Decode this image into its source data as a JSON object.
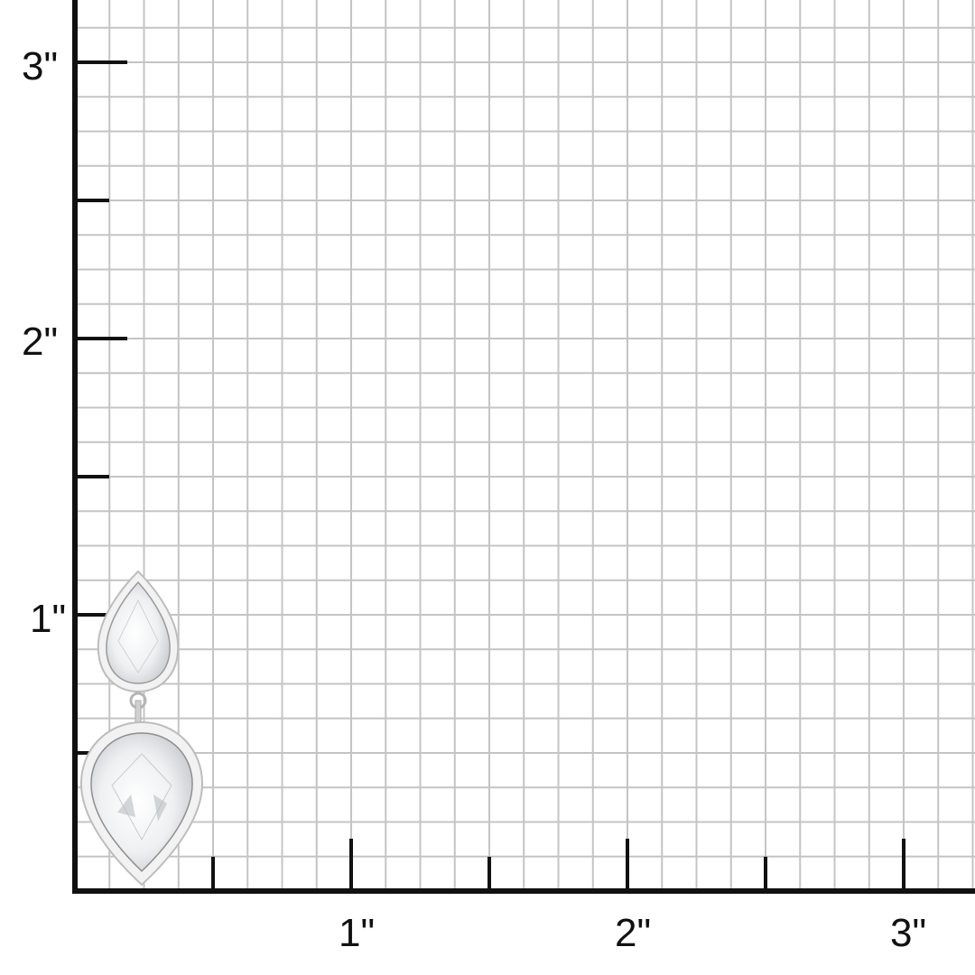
{
  "ruler": {
    "unit": "inch",
    "x_labels": [
      "1\"",
      "2\"",
      "3\""
    ],
    "y_labels": [
      "1\"",
      "2\"",
      "3\""
    ],
    "grid_divisions_per_inch": 8,
    "colors": {
      "axis": "#111111",
      "grid": "#c4c4c4",
      "metal": "#d9d9d9"
    }
  },
  "product": {
    "name": "earring",
    "icon": "pear-crystal-drop-earring"
  }
}
